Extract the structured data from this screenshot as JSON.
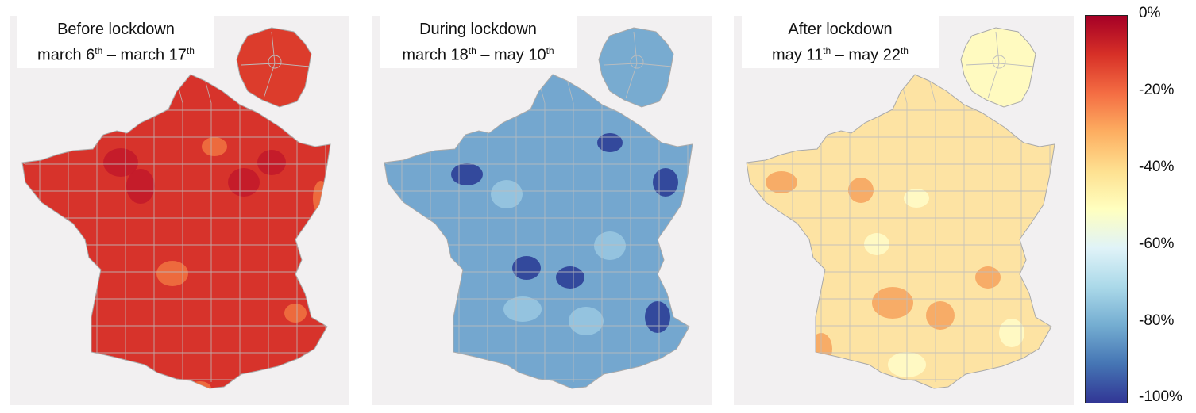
{
  "panels": [
    {
      "line1": "Before lockdown",
      "l2_a": "march 6",
      "l2_sup1": "th",
      "l2_mid": " – march 17",
      "l2_sup2": "th",
      "fill": "#d7332b",
      "dark": "#c3192a",
      "light": "#f0703f",
      "idf_fill": "#dc3c2c"
    },
    {
      "line1": "During lockdown",
      "l2_a": "march 18",
      "l2_sup1": "th",
      "l2_mid": " – may 10",
      "l2_sup2": "th",
      "fill": "#74a7cf",
      "dark": "#2c3f96",
      "light": "#98c6e0",
      "idf_fill": "#78abd0"
    },
    {
      "line1": "After lockdown",
      "l2_a": "may 11",
      "l2_sup1": "th",
      "l2_mid": " – may 22",
      "l2_sup2": "th",
      "fill": "#fde3a3",
      "dark": "#f6a560",
      "light": "#fffbc6",
      "idf_fill": "#fffac0"
    }
  ],
  "legend": {
    "ticks": [
      "0%",
      "-20%",
      "-40%",
      "-60%",
      "-80%",
      "-100%"
    ],
    "colors": [
      "#a50026",
      "#d73027",
      "#f46d43",
      "#fdae61",
      "#fee090",
      "#ffffbf",
      "#e0f3f8",
      "#abd9e9",
      "#74add1",
      "#4575b4",
      "#313695"
    ]
  }
}
